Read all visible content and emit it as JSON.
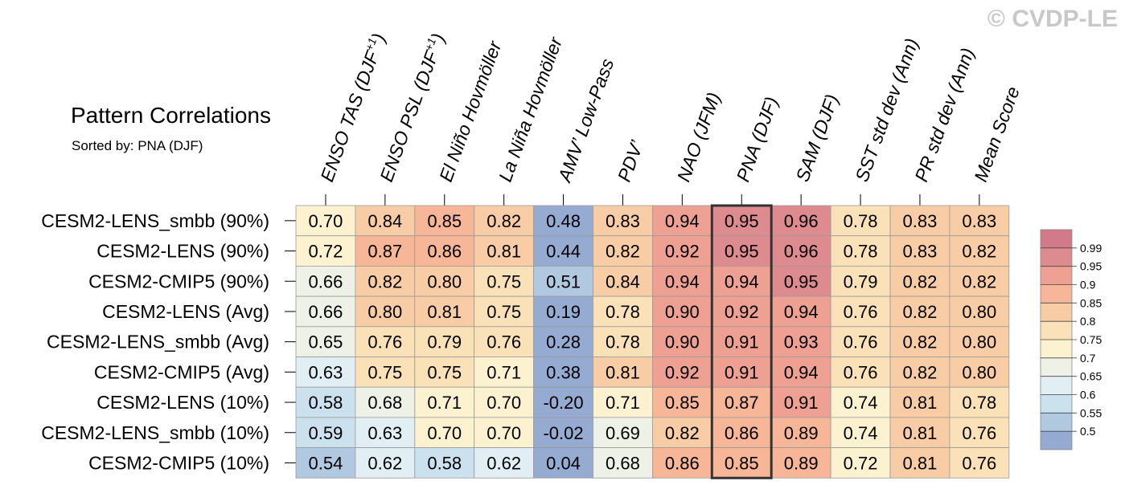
{
  "copyright": "© CVDP-LE",
  "chart_data": {
    "type": "heatmap",
    "title": "Pattern Correlations",
    "subtitle": "Sorted by: PNA (DJF)",
    "highlight_column": "PNA (DJF)",
    "columns": [
      {
        "main": "ENSO TAS (DJF",
        "sup": "+1",
        "tail": ")"
      },
      {
        "main": "ENSO PSL (DJF",
        "sup": "+1",
        "tail": ")"
      },
      {
        "main": "El Niño Hovmöller",
        "sup": "",
        "tail": ""
      },
      {
        "main": "La Niña Hovmöller",
        "sup": "",
        "tail": ""
      },
      {
        "main": "AMV’ Low-Pass",
        "sup": "",
        "tail": ""
      },
      {
        "main": "PDV’",
        "sup": "",
        "tail": ""
      },
      {
        "main": "NAO (JFM)",
        "sup": "",
        "tail": ""
      },
      {
        "main": "PNA (DJF)",
        "sup": "",
        "tail": ""
      },
      {
        "main": "SAM (DJF)",
        "sup": "",
        "tail": ""
      },
      {
        "main": "SST std dev (Ann)",
        "sup": "",
        "tail": ""
      },
      {
        "main": "PR std dev (Ann)",
        "sup": "",
        "tail": ""
      },
      {
        "main": "Mean Score",
        "sup": "",
        "tail": ""
      }
    ],
    "rows": [
      {
        "label": "CESM2-LENS_smbb (90%)",
        "values": [
          "0.70",
          "0.84",
          "0.85",
          "0.82",
          "0.48",
          "0.83",
          "0.94",
          "0.95",
          "0.96",
          "0.78",
          "0.83",
          "0.83"
        ]
      },
      {
        "label": "CESM2-LENS (90%)",
        "values": [
          "0.72",
          "0.87",
          "0.86",
          "0.81",
          "0.44",
          "0.82",
          "0.92",
          "0.95",
          "0.96",
          "0.78",
          "0.83",
          "0.82"
        ]
      },
      {
        "label": "CESM2-CMIP5 (90%)",
        "values": [
          "0.66",
          "0.82",
          "0.80",
          "0.75",
          "0.51",
          "0.84",
          "0.94",
          "0.94",
          "0.95",
          "0.79",
          "0.82",
          "0.82"
        ]
      },
      {
        "label": "CESM2-LENS (Avg)",
        "values": [
          "0.66",
          "0.80",
          "0.81",
          "0.75",
          "0.19",
          "0.78",
          "0.90",
          "0.92",
          "0.94",
          "0.76",
          "0.82",
          "0.80"
        ]
      },
      {
        "label": "CESM2-LENS_smbb (Avg)",
        "values": [
          "0.65",
          "0.76",
          "0.79",
          "0.76",
          "0.28",
          "0.78",
          "0.90",
          "0.91",
          "0.93",
          "0.76",
          "0.82",
          "0.80"
        ]
      },
      {
        "label": "CESM2-CMIP5 (Avg)",
        "values": [
          "0.63",
          "0.75",
          "0.75",
          "0.71",
          "0.38",
          "0.81",
          "0.92",
          "0.91",
          "0.94",
          "0.76",
          "0.82",
          "0.80"
        ]
      },
      {
        "label": "CESM2-LENS (10%)",
        "values": [
          "0.58",
          "0.68",
          "0.71",
          "0.70",
          "-0.20",
          "0.71",
          "0.85",
          "0.87",
          "0.91",
          "0.74",
          "0.81",
          "0.78"
        ]
      },
      {
        "label": "CESM2-LENS_smbb (10%)",
        "values": [
          "0.59",
          "0.63",
          "0.70",
          "0.70",
          "-0.02",
          "0.69",
          "0.82",
          "0.86",
          "0.89",
          "0.74",
          "0.81",
          "0.76"
        ]
      },
      {
        "label": "CESM2-CMIP5 (10%)",
        "values": [
          "0.54",
          "0.62",
          "0.58",
          "0.62",
          "0.04",
          "0.68",
          "0.86",
          "0.85",
          "0.89",
          "0.72",
          "0.81",
          "0.76"
        ]
      }
    ],
    "colorbar": {
      "ticks": [
        "0.99",
        "0.95",
        "0.9",
        "0.85",
        "0.8",
        "0.75",
        "0.7",
        "0.65",
        "0.6",
        "0.55",
        "0.5"
      ],
      "colors": [
        "#d27a8a",
        "#de8b8f",
        "#eea092",
        "#f6b697",
        "#f8cca4",
        "#fbe1b7",
        "#fcf2cf",
        "#eef1e6",
        "#e1eef3",
        "#cbe2ee",
        "#b0c9e0",
        "#96abd2"
      ]
    }
  }
}
